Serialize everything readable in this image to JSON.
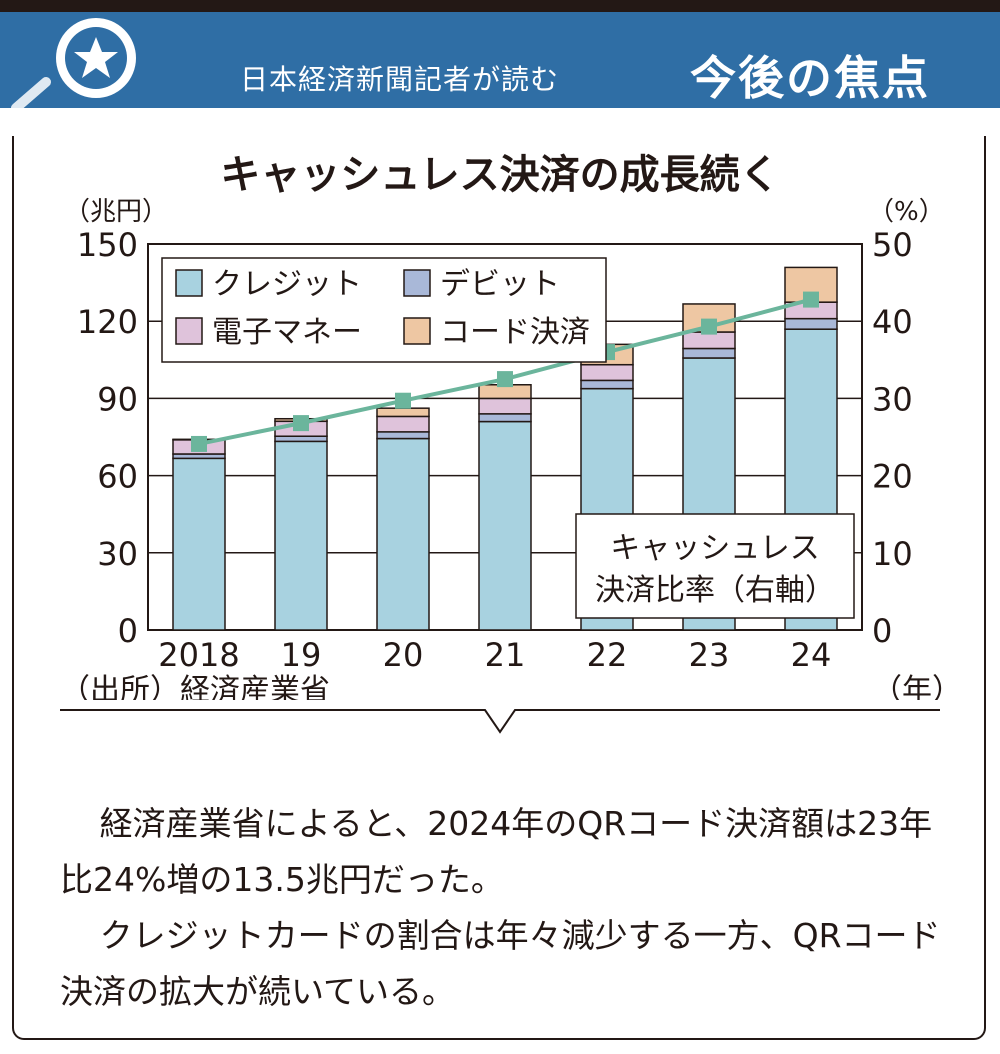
{
  "header": {
    "subtitle": "日本経済新聞記者が読む",
    "title": "今後の焦点",
    "icon": "magnifier-star-icon"
  },
  "chart_data": {
    "type": "bar",
    "stacked": true,
    "title": "キャッシュレス決済の成長続く",
    "left_unit": "（兆円）",
    "right_unit": "（%）",
    "x_unit": "（年）",
    "source": "（出所）経済産業省",
    "categories": [
      "2018",
      "19",
      "20",
      "21",
      "22",
      "23",
      "24"
    ],
    "ylim": [
      0,
      150
    ],
    "y_ticks": [
      "0",
      "30",
      "60",
      "90",
      "120",
      "150"
    ],
    "y2lim": [
      0,
      50
    ],
    "y2_ticks": [
      "0",
      "10",
      "20",
      "30",
      "40",
      "50"
    ],
    "grid": true,
    "legend_position": "top-left",
    "series": [
      {
        "name": "クレジット",
        "color": "#a8d2e0",
        "values": [
          66.7,
          73.3,
          74.4,
          81.0,
          93.8,
          105.7,
          116.9
        ]
      },
      {
        "name": "デビット",
        "color": "#a9b8d8",
        "values": [
          1.7,
          2.0,
          2.6,
          3.0,
          3.2,
          3.7,
          4.1
        ]
      },
      {
        "name": "電子マネー",
        "color": "#dfc3db",
        "values": [
          5.5,
          5.8,
          6.0,
          6.0,
          6.1,
          6.4,
          6.4
        ]
      },
      {
        "name": "コード決済",
        "color": "#eec7a3",
        "values": [
          0.2,
          1.0,
          3.2,
          5.3,
          7.9,
          10.9,
          13.5
        ]
      }
    ],
    "line": {
      "name": "キャッシュレス決済比率（右軸）",
      "label_lines": [
        "キャッシュレス",
        "決済比率（右軸）"
      ],
      "color": "#6bb59c",
      "axis": "right",
      "values": [
        24.1,
        26.8,
        29.7,
        32.5,
        36.0,
        39.3,
        42.8
      ]
    }
  },
  "article": {
    "paragraphs": [
      "経済産業省によると、2024年のQRコード決済額は23年比24%増の13.5兆円だった。",
      "クレジットカードの割合は年々減少する一方、QRコード決済の拡大が続いている。"
    ]
  }
}
